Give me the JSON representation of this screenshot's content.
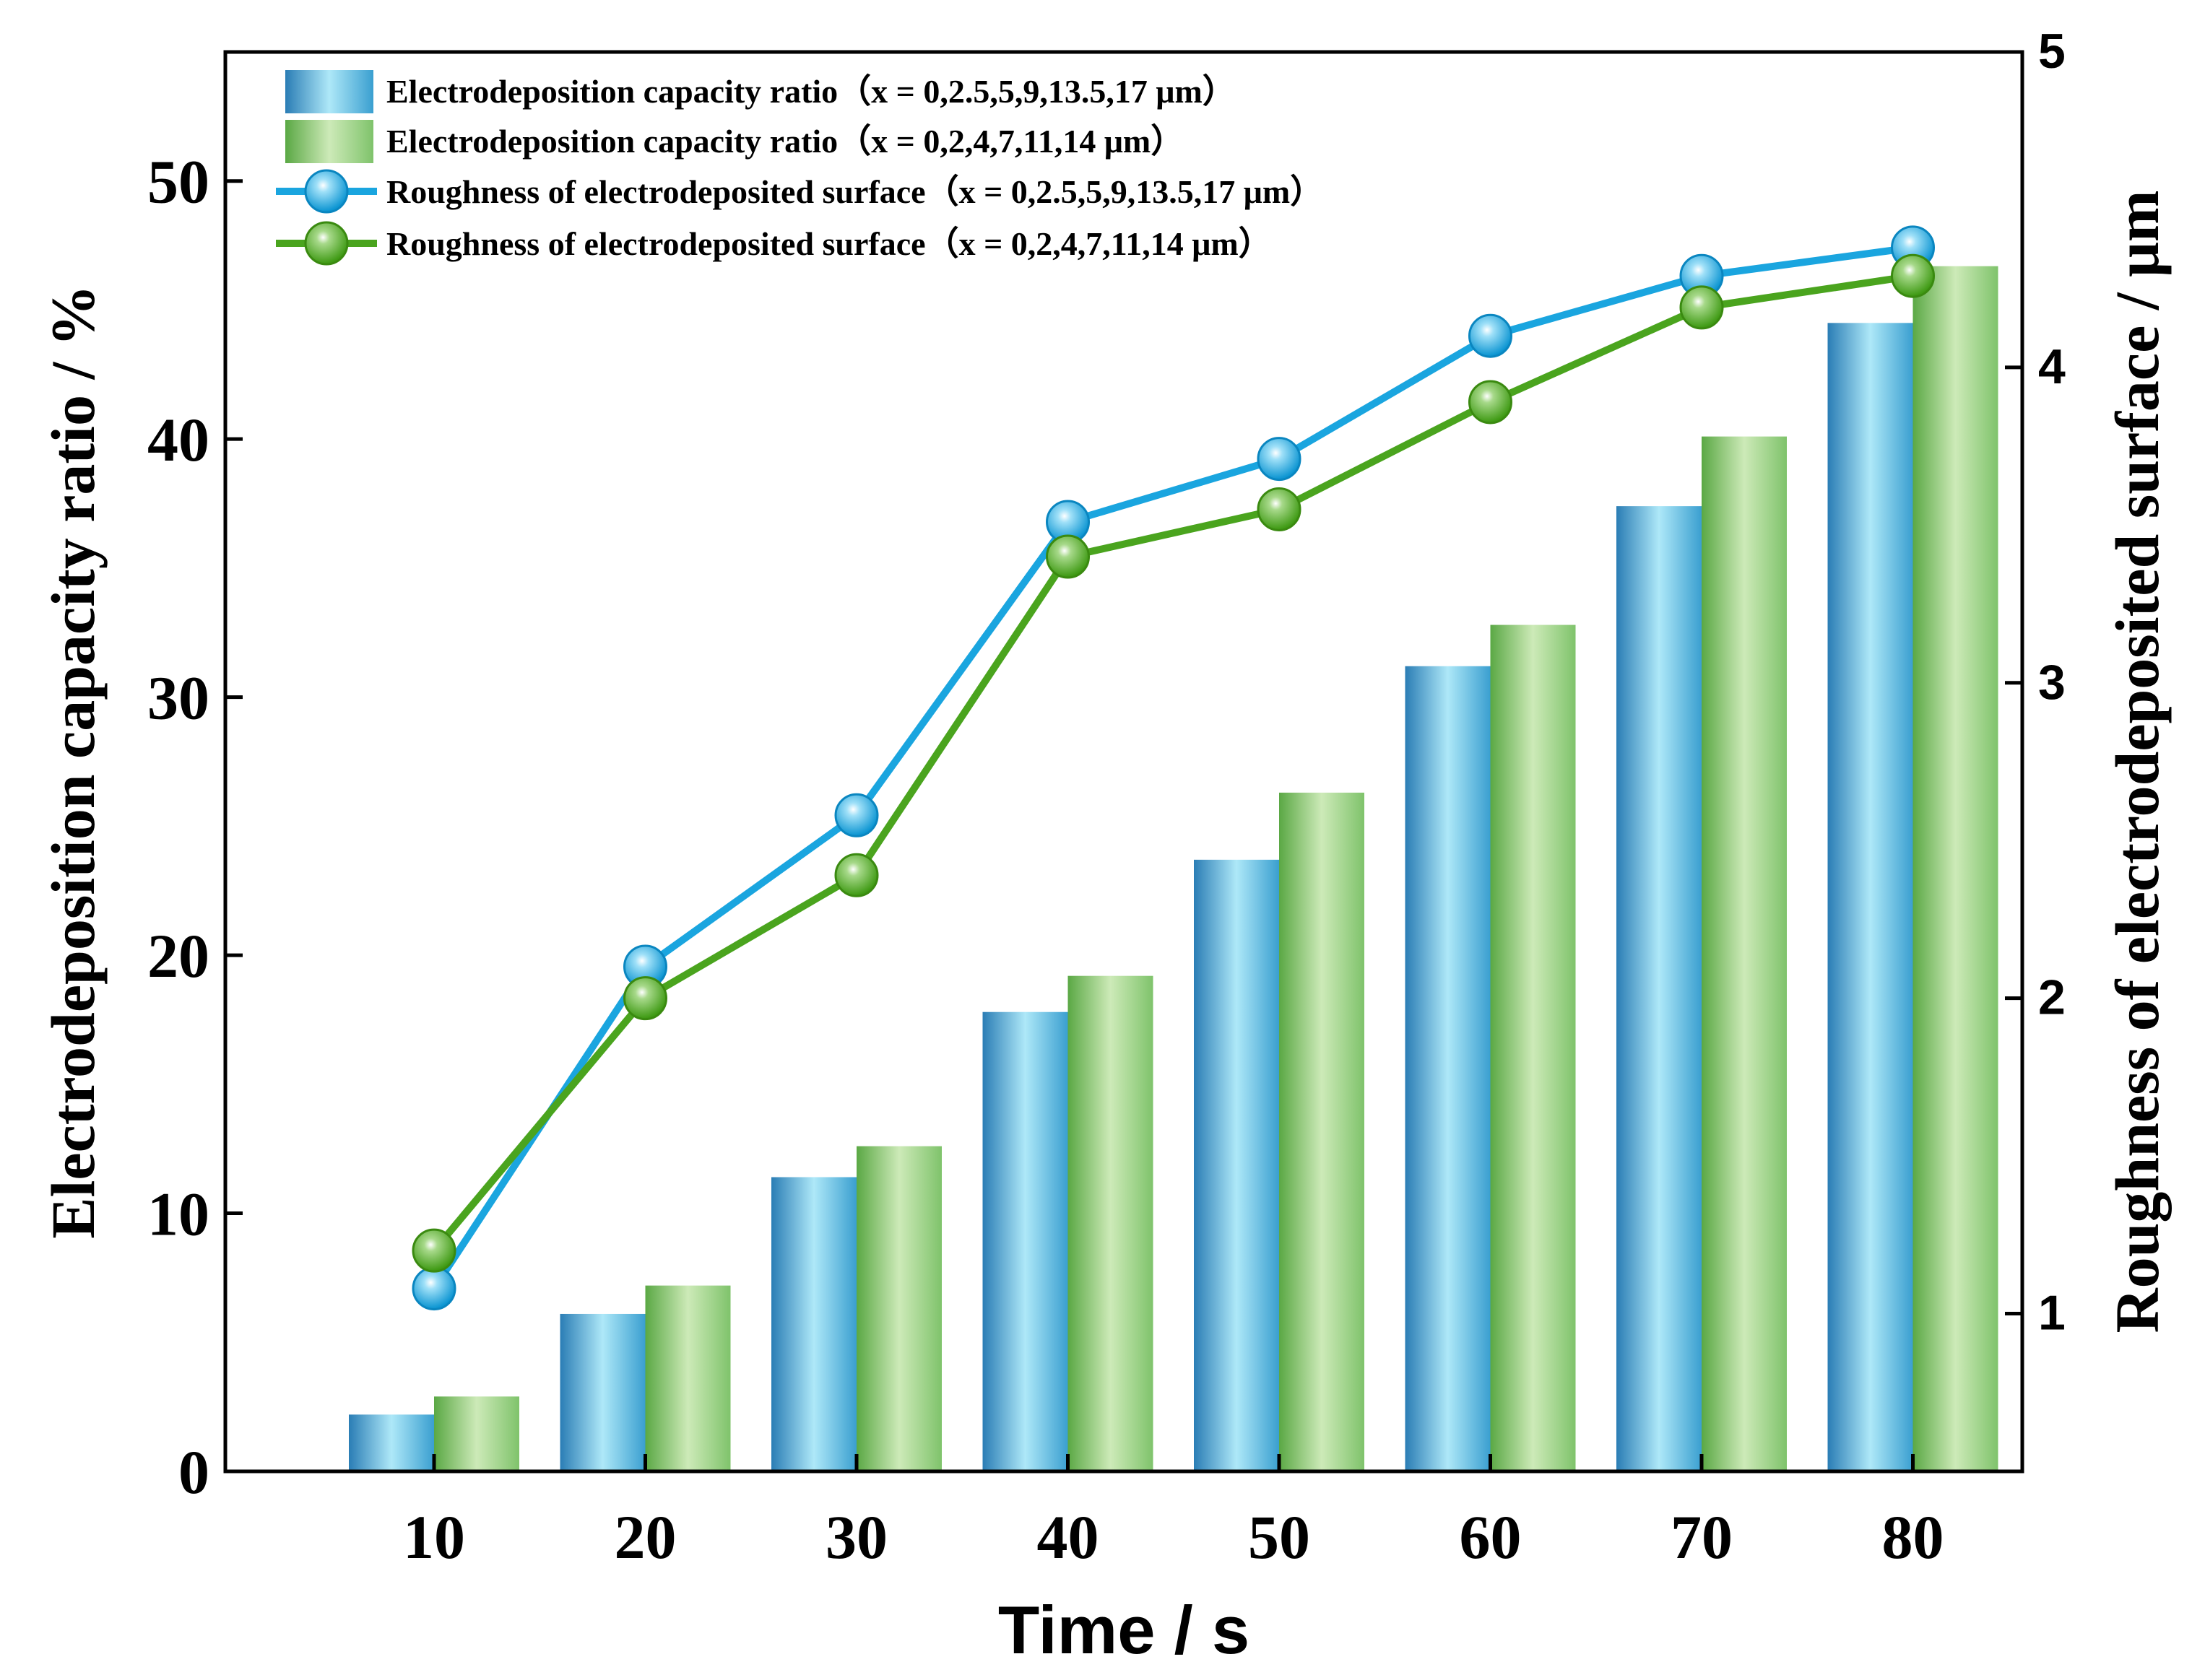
{
  "chart_data": {
    "type": "bar",
    "x": [
      10,
      20,
      30,
      40,
      50,
      60,
      70,
      80
    ],
    "xlabel": "Time / s",
    "ylabel_left": "Electrodeposition capacity ratio / %",
    "ylabel_right": "Roughness of electrodeposited surface / μm",
    "ylim_left": [
      0,
      55
    ],
    "ylim_right": [
      0.5,
      5
    ],
    "yticks_left": [
      0,
      10,
      20,
      30,
      40,
      50
    ],
    "yticks_right": [
      1,
      2,
      3,
      4,
      5
    ],
    "legend_position": "top-left",
    "grid": false,
    "bar_series": [
      {
        "name": "Electrodeposition capacity ratio（x = 0,2.5,5,9,13.5,17 μm）",
        "axis": "left",
        "color": "#3a9fd0",
        "values": [
          2.2,
          6.1,
          11.4,
          17.8,
          23.7,
          31.2,
          37.4,
          44.5
        ]
      },
      {
        "name": "Electrodeposition capacity ratio（x = 0,2,4,7,11,14 μm）",
        "axis": "left",
        "color": "#7fc36b",
        "values": [
          2.9,
          7.2,
          12.6,
          19.2,
          26.3,
          32.8,
          40.1,
          46.7
        ]
      }
    ],
    "line_series": [
      {
        "name": "Roughness of electrodeposited surface（x = 0,2.5,5,9,13.5,17 μm）",
        "axis": "right",
        "color": "#1aa5df",
        "values": [
          1.08,
          2.1,
          2.58,
          3.51,
          3.71,
          4.1,
          4.29,
          4.38
        ]
      },
      {
        "name": "Roughness of electrodeposited surface（x = 0,2,4,7,11,14 μm）",
        "axis": "right",
        "color": "#4aa41e",
        "values": [
          1.2,
          2.0,
          2.39,
          3.4,
          3.55,
          3.89,
          4.19,
          4.29
        ]
      }
    ]
  }
}
